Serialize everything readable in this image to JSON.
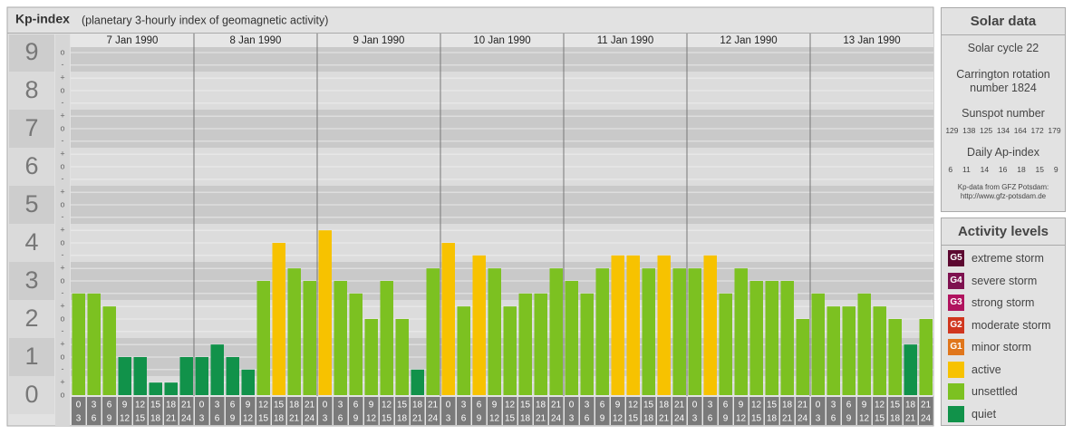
{
  "chart_data": {
    "type": "bar",
    "title": "Kp-index",
    "subtitle": "(planetary 3-hourly index of geomagnetic activity)",
    "days": [
      "7 Jan 1990",
      "8 Jan 1990",
      "9 Jan 1990",
      "10 Jan 1990",
      "11 Jan 1990",
      "12 Jan 1990",
      "13 Jan 1990"
    ],
    "hours": [
      [
        "0",
        "3"
      ],
      [
        "3",
        "6"
      ],
      [
        "6",
        "9"
      ],
      [
        "9",
        "12"
      ],
      [
        "12",
        "15"
      ],
      [
        "15",
        "18"
      ],
      [
        "18",
        "21"
      ],
      [
        "21",
        "24"
      ]
    ],
    "values": [
      2.67,
      2.67,
      2.33,
      1,
      1,
      0.33,
      0.33,
      1,
      1,
      1.33,
      1,
      0.67,
      3,
      4,
      3.33,
      3,
      4.33,
      3,
      2.67,
      2,
      3,
      2,
      0.67,
      3.33,
      4,
      2.33,
      3.67,
      3.33,
      2.33,
      2.67,
      2.67,
      3.33,
      3,
      2.67,
      3.33,
      3.67,
      3.67,
      3.33,
      3.67,
      3.33,
      3.33,
      3.67,
      2.67,
      3.33,
      3,
      3,
      3,
      2,
      2.67,
      2.33,
      2.33,
      2.67,
      2.33,
      2,
      1.33,
      2
    ],
    "colors": [
      "#7cc121",
      "#7cc121",
      "#7cc121",
      "#11924a",
      "#11924a",
      "#11924a",
      "#11924a",
      "#11924a",
      "#11924a",
      "#11924a",
      "#11924a",
      "#11924a",
      "#7cc121",
      "#f7c200",
      "#7cc121",
      "#7cc121",
      "#f7c200",
      "#7cc121",
      "#7cc121",
      "#7cc121",
      "#7cc121",
      "#7cc121",
      "#11924a",
      "#7cc121",
      "#f7c200",
      "#7cc121",
      "#f7c200",
      "#7cc121",
      "#7cc121",
      "#7cc121",
      "#7cc121",
      "#7cc121",
      "#7cc121",
      "#7cc121",
      "#7cc121",
      "#f7c200",
      "#f7c200",
      "#7cc121",
      "#f7c200",
      "#7cc121",
      "#7cc121",
      "#f7c200",
      "#7cc121",
      "#7cc121",
      "#7cc121",
      "#7cc121",
      "#7cc121",
      "#7cc121",
      "#7cc121",
      "#7cc121",
      "#7cc121",
      "#7cc121",
      "#7cc121",
      "#7cc121",
      "#11924a",
      "#7cc121"
    ],
    "ylim": [
      0,
      9
    ],
    "yticks": [
      0,
      1,
      2,
      3,
      4,
      5,
      6,
      7,
      8,
      9
    ],
    "minor_yticks": [
      {
        "value": 0,
        "label": "o"
      },
      {
        "value": 0.33,
        "label": "+"
      },
      {
        "value": 0.67,
        "label": "-"
      },
      {
        "value": 1,
        "label": "o"
      },
      {
        "value": 1.33,
        "label": "+"
      },
      {
        "value": 1.67,
        "label": "-"
      },
      {
        "value": 2,
        "label": "o"
      },
      {
        "value": 2.33,
        "label": "+"
      },
      {
        "value": 2.67,
        "label": "-"
      },
      {
        "value": 3,
        "label": "o"
      },
      {
        "value": 3.33,
        "label": "+"
      },
      {
        "value": 3.67,
        "label": "-"
      },
      {
        "value": 4,
        "label": "o"
      },
      {
        "value": 4.33,
        "label": "+"
      },
      {
        "value": 4.67,
        "label": "-"
      },
      {
        "value": 5,
        "label": "o"
      },
      {
        "value": 5.33,
        "label": "+"
      },
      {
        "value": 5.67,
        "label": "-"
      },
      {
        "value": 6,
        "label": "o"
      },
      {
        "value": 6.33,
        "label": "+"
      },
      {
        "value": 6.67,
        "label": "-"
      },
      {
        "value": 7,
        "label": "o"
      },
      {
        "value": 7.33,
        "label": "+"
      },
      {
        "value": 7.67,
        "label": "-"
      },
      {
        "value": 8,
        "label": "o"
      },
      {
        "value": 8.33,
        "label": "+"
      },
      {
        "value": 8.67,
        "label": "-"
      },
      {
        "value": 9,
        "label": "o"
      }
    ],
    "grid": true
  },
  "solar_data": {
    "title": "Solar data",
    "cycle": "Solar cycle 22",
    "rotation": "Carrington rotation number 1824",
    "sunspot_title": "Sunspot number",
    "sunspot": [
      129,
      138,
      125,
      134,
      164,
      172,
      179
    ],
    "ap_title": "Daily Ap-index",
    "ap": [
      6,
      11,
      14,
      16,
      18,
      15,
      9
    ],
    "source": "Kp-data from GFZ Potsdam: http://www.gfz-potsdam.de"
  },
  "activity_levels": {
    "title": "Activity levels",
    "items": [
      {
        "badge": "G5",
        "label": "extreme storm",
        "color": "#5c0830"
      },
      {
        "badge": "G4",
        "label": "severe storm",
        "color": "#7e1250"
      },
      {
        "badge": "G3",
        "label": "strong storm",
        "color": "#b0135e"
      },
      {
        "badge": "G2",
        "label": "moderate storm",
        "color": "#d0361e"
      },
      {
        "badge": "G1",
        "label": "minor storm",
        "color": "#e0761c"
      },
      {
        "label": "active",
        "color": "#f7c200"
      },
      {
        "label": "unsettled",
        "color": "#7cc121"
      },
      {
        "label": "quiet",
        "color": "#11924a"
      }
    ]
  }
}
